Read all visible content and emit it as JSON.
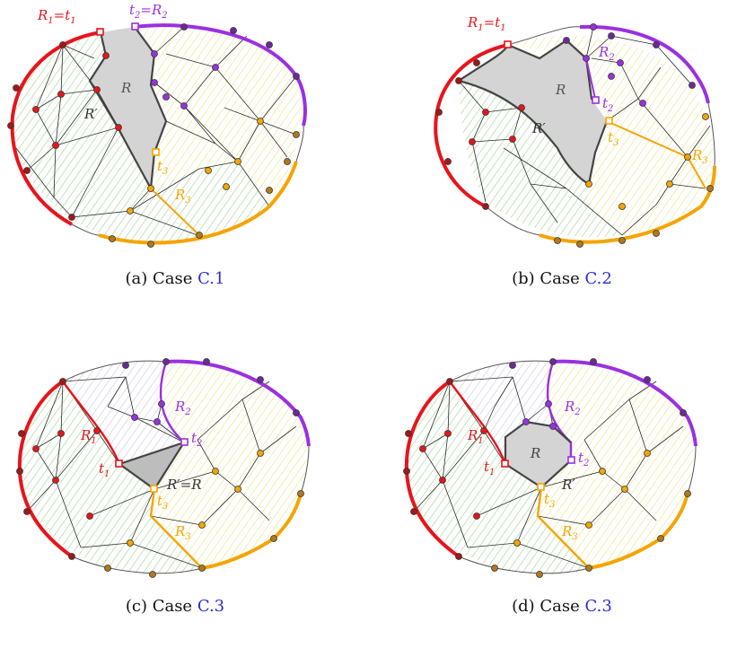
{
  "panels": [
    {
      "id": "a",
      "caption_prefix": "(a) Case",
      "caption_ref": "C.1",
      "labels": {
        "r1": "R",
        "r1sub": "1",
        "t1": "t",
        "t1sub": "1",
        "t2": "t",
        "t2sub": "2",
        "r2": "R",
        "r2sub": "2",
        "R": "R",
        "Rp": "R′",
        "t3": "t",
        "t3sub": "3",
        "r3": "R",
        "r3sub": "3"
      }
    },
    {
      "id": "b",
      "caption_prefix": "(b) Case",
      "caption_ref": "C.2",
      "labels": {
        "r1": "R",
        "r1sub": "1",
        "t1": "t",
        "t1sub": "1",
        "r2": "R",
        "r2sub": "2",
        "t2": "t",
        "t2sub": "2",
        "R": "R",
        "Rp": "R′",
        "t3": "t",
        "t3sub": "3",
        "r3": "R",
        "r3sub": "3"
      }
    },
    {
      "id": "c",
      "caption_prefix": "(c) Case",
      "caption_ref": "C.3",
      "labels": {
        "r1": "R",
        "r1sub": "1",
        "t1": "t",
        "t1sub": "1",
        "r2": "R",
        "r2sub": "2",
        "t2": "t",
        "t2sub": "2",
        "RpR": "R′=R",
        "t3": "t",
        "t3sub": "3",
        "r3": "R",
        "r3sub": "3"
      }
    },
    {
      "id": "d",
      "caption_prefix": "(d) Case",
      "caption_ref": "C.3",
      "labels": {
        "r1": "R",
        "r1sub": "1",
        "t1": "t",
        "t1sub": "1",
        "r2": "R",
        "r2sub": "2",
        "t2": "t",
        "t2sub": "2",
        "R": "R",
        "Rp": "R′",
        "t3": "t",
        "t3sub": "3",
        "r3": "R",
        "r3sub": "3"
      }
    }
  ],
  "colors": {
    "red": "#e8141b",
    "purple": "#9b30e0",
    "orange": "#f5a400",
    "boundary_dark": "#8a8a8a",
    "region_gray": "#d4d4d4",
    "green_hatch": "#9fd08a",
    "yellow_hatch": "#e8e88a",
    "gray_hatch": "#c6c6d8",
    "edge": "#2a2a2a",
    "link": "#2b2bd6"
  }
}
